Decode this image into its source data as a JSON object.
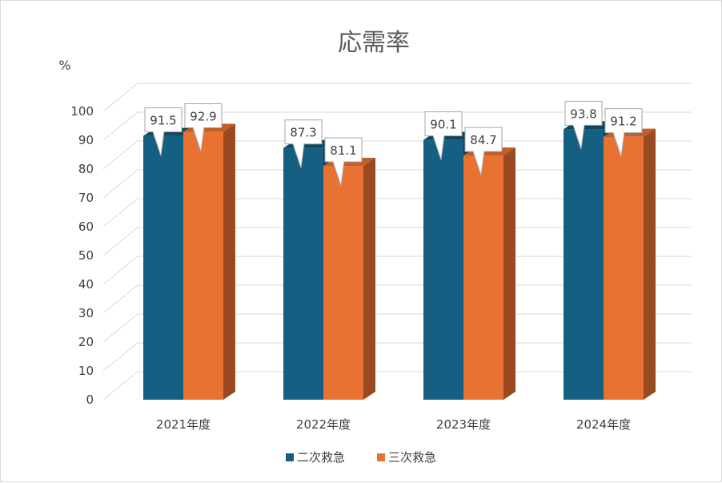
{
  "colors": {
    "series_front": [
      "#156082",
      "#E97132"
    ],
    "series_side": [
      "#0E3F55",
      "#9A4A20"
    ],
    "series_top": [
      "#0F4761",
      "#C25E28"
    ],
    "grid": "#d9d9d9",
    "text": "#404040"
  },
  "chart_data": {
    "type": "bar",
    "title": "応需率",
    "ylabel": "%",
    "xlabel": "",
    "ylim": [
      0,
      100
    ],
    "yticks": [
      0,
      10,
      20,
      30,
      40,
      50,
      60,
      70,
      80,
      90,
      100
    ],
    "categories": [
      "2021年度",
      "2022年度",
      "2023年度",
      "2024年度"
    ],
    "series": [
      {
        "name": "二次救急",
        "values": [
          91.5,
          87.3,
          90.1,
          93.8
        ]
      },
      {
        "name": "三次救急",
        "values": [
          92.9,
          81.1,
          84.7,
          91.2
        ]
      }
    ],
    "grid": true,
    "legend": "bottom",
    "three_d": true,
    "data_labels": "callout"
  }
}
